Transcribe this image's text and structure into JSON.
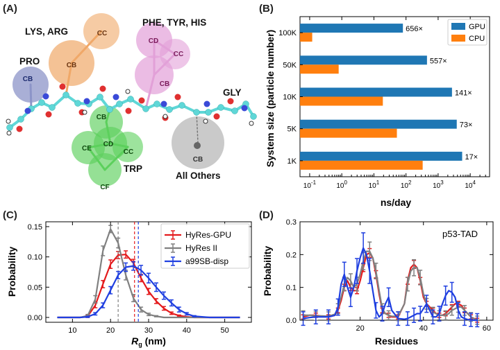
{
  "panels": {
    "a": {
      "label": "(A)"
    },
    "b": {
      "label": "(B)"
    },
    "c": {
      "label": "(C)"
    },
    "d": {
      "label": "(D)"
    }
  },
  "molecule": {
    "groups": [
      "LYS, ARG",
      "PHE, TYR, HIS",
      "PRO",
      "GLY",
      "TRP",
      "All Others"
    ],
    "beads": {
      "lys_cb": "CB",
      "lys_cc": "CC",
      "phe_cd": "CD",
      "phe_cc": "CC",
      "phe_cb": "CB",
      "pro_cb": "CB",
      "trp_cb": "CB",
      "trp_ce": "CE",
      "trp_cd": "CD",
      "trp_cc": "CC",
      "trp_cf": "CF",
      "other_cb": "CB"
    },
    "colors": {
      "lys": "#f0a868",
      "phe": "#e2a0d8",
      "pro": "#8c94c8",
      "trp": "#5cd05c",
      "other": "#b8b8b8",
      "backbone": "#5fd7d7",
      "oxygen": "#e03030",
      "nitrogen": "#3a4ad8"
    }
  },
  "chart_data": [
    {
      "panel": "B",
      "type": "bar",
      "orientation": "horizontal",
      "xscale": "log",
      "xlabel": "ns/day",
      "ylabel": "System size (particle number)",
      "xlim": [
        0.05,
        40000
      ],
      "x_ticks": [
        {
          "label": "10",
          "sup": "-1",
          "value": 0.1
        },
        {
          "label": "10",
          "sup": "0",
          "value": 1
        },
        {
          "label": "10",
          "sup": "1",
          "value": 10
        },
        {
          "label": "10",
          "sup": "2",
          "value": 100
        },
        {
          "label": "10",
          "sup": "3",
          "value": 1000
        },
        {
          "label": "10",
          "sup": "4",
          "value": 10000
        }
      ],
      "categories": [
        "100K",
        "50K",
        "10K",
        "5K",
        "1K"
      ],
      "series": [
        {
          "name": "GPU",
          "color": "#1f77b4",
          "values": [
            80,
            450,
            2700,
            3800,
            5600
          ]
        },
        {
          "name": "CPU",
          "color": "#ff7f0e",
          "values": [
            0.12,
            0.8,
            19,
            52,
            330
          ]
        }
      ],
      "speedup_labels": [
        "656×",
        "557×",
        "141×",
        "73×",
        "17×"
      ],
      "legend_position": "top-right"
    },
    {
      "panel": "C",
      "type": "line",
      "xlabel": "R",
      "xlabel_sub": "g",
      "xlabel_unit": " (nm)",
      "ylabel": "Probability",
      "xlim": [
        3,
        57
      ],
      "ylim": [
        -0.008,
        0.158
      ],
      "x_ticks": [
        10,
        20,
        30,
        40,
        50
      ],
      "y_ticks": [
        "0.00",
        "0.05",
        "0.10",
        "0.15"
      ],
      "series": [
        {
          "name": "HyRes-GPU",
          "color": "#e41a1c",
          "x": [
            6,
            8,
            10,
            12,
            14,
            16,
            18,
            20,
            22,
            24,
            26,
            28,
            30,
            32,
            34,
            36,
            38,
            40,
            42,
            44,
            46,
            48,
            50,
            52,
            54
          ],
          "y": [
            0,
            0,
            0,
            0,
            0.002,
            0.02,
            0.055,
            0.088,
            0.103,
            0.104,
            0.09,
            0.065,
            0.043,
            0.027,
            0.015,
            0.007,
            0.003,
            0.001,
            0,
            0,
            0,
            0,
            0,
            0,
            0
          ],
          "err": [
            0,
            0,
            0,
            0,
            0.002,
            0.004,
            0.006,
            0.007,
            0.006,
            0.006,
            0.006,
            0.006,
            0.005,
            0.004,
            0.003,
            0.002,
            0.001,
            0,
            0,
            0,
            0,
            0,
            0,
            0,
            0
          ],
          "mean": 26.3
        },
        {
          "name": "HyRes II",
          "color": "#808080",
          "x": [
            6,
            8,
            10,
            12,
            14,
            16,
            18,
            20,
            22,
            24,
            26,
            28,
            30,
            32,
            34,
            36,
            38,
            40,
            42,
            44,
            46,
            48,
            50,
            52,
            54
          ],
          "y": [
            0,
            0,
            0,
            0,
            0.003,
            0.03,
            0.11,
            0.146,
            0.123,
            0.07,
            0.032,
            0.013,
            0.005,
            0.002,
            0,
            0,
            0,
            0,
            0,
            0,
            0,
            0,
            0,
            0,
            0
          ],
          "err": [
            0,
            0,
            0,
            0,
            0.002,
            0.006,
            0.008,
            0.006,
            0.008,
            0.008,
            0.006,
            0.004,
            0.002,
            0.001,
            0,
            0,
            0,
            0,
            0,
            0,
            0,
            0,
            0,
            0,
            0
          ],
          "mean": 22
        },
        {
          "name": "a99SB-disp",
          "color": "#1f3fe0",
          "x": [
            6,
            8,
            10,
            12,
            14,
            16,
            18,
            20,
            22,
            24,
            26,
            28,
            30,
            32,
            34,
            36,
            38,
            40,
            42,
            44,
            46,
            48,
            50,
            52,
            54
          ],
          "y": [
            0,
            0,
            0,
            0,
            0.001,
            0.006,
            0.02,
            0.045,
            0.07,
            0.083,
            0.085,
            0.078,
            0.065,
            0.05,
            0.036,
            0.024,
            0.013,
            0.006,
            0.002,
            0.001,
            0,
            0,
            0,
            0,
            0
          ],
          "err": [
            0,
            0,
            0,
            0,
            0.001,
            0.002,
            0.004,
            0.006,
            0.006,
            0.007,
            0.007,
            0.008,
            0.008,
            0.007,
            0.006,
            0.005,
            0.004,
            0.002,
            0.001,
            0,
            0,
            0,
            0,
            0,
            0
          ],
          "mean": 27.3
        }
      ],
      "legend_position": "top-right"
    },
    {
      "panel": "D",
      "type": "line",
      "title": "p53-TAD",
      "xlabel": "Residues",
      "ylabel": "Probability",
      "xlim": [
        1,
        62
      ],
      "ylim": [
        0,
        0.3
      ],
      "x_ticks": [
        20,
        40,
        60
      ],
      "y_ticks": [
        "0.0",
        "0.1",
        "0.2",
        "0.3"
      ],
      "series": [
        {
          "name": "HyRes-GPU",
          "color": "#e41a1c",
          "x": [
            2,
            4,
            6,
            8,
            10,
            12,
            13,
            14,
            15,
            16,
            17,
            18,
            19,
            20,
            21,
            22,
            23,
            24,
            25,
            26,
            27,
            28,
            29,
            30,
            32,
            34,
            35,
            36,
            37,
            38,
            39,
            40,
            41,
            42,
            43,
            44,
            45,
            46,
            47,
            48,
            49,
            50,
            51,
            52,
            53,
            54,
            55,
            56,
            57
          ],
          "y": [
            0.01,
            0.015,
            0.015,
            0.012,
            0.01,
            0.015,
            0.03,
            0.06,
            0.1,
            0.12,
            0.1,
            0.09,
            0.09,
            0.12,
            0.16,
            0.2,
            0.205,
            0.19,
            0.14,
            0.08,
            0.03,
            0.02,
            0.015,
            0.01,
            0.01,
            0.05,
            0.12,
            0.16,
            0.17,
            0.16,
            0.12,
            0.07,
            0.05,
            0.04,
            0.03,
            0.02,
            0.015,
            0.015,
            0.02,
            0.03,
            0.04,
            0.05,
            0.05,
            0.045,
            0.03,
            0.02,
            0.01,
            0.005,
            0
          ],
          "err_every": 2,
          "err": 0.012
        },
        {
          "name": "HyRes II",
          "color": "#808080",
          "x": [
            2,
            4,
            6,
            8,
            10,
            12,
            13,
            14,
            15,
            16,
            17,
            18,
            19,
            20,
            21,
            22,
            23,
            24,
            25,
            26,
            27,
            28,
            29,
            30,
            32,
            34,
            35,
            36,
            37,
            38,
            39,
            40,
            41,
            42,
            43,
            44,
            45,
            46,
            47,
            48,
            49,
            50,
            51,
            52,
            53,
            54,
            55,
            56,
            57
          ],
          "y": [
            0.015,
            0.015,
            0.013,
            0.013,
            0.012,
            0.018,
            0.035,
            0.07,
            0.11,
            0.13,
            0.12,
            0.1,
            0.11,
            0.14,
            0.18,
            0.21,
            0.21,
            0.19,
            0.15,
            0.09,
            0.035,
            0.02,
            0.015,
            0.012,
            0.012,
            0.05,
            0.11,
            0.15,
            0.16,
            0.16,
            0.13,
            0.08,
            0.05,
            0.035,
            0.025,
            0.02,
            0.015,
            0.015,
            0.015,
            0.02,
            0.03,
            0.035,
            0.04,
            0.04,
            0.03,
            0.02,
            0.01,
            0.005,
            0
          ],
          "err_every": 2,
          "err": 0.025
        },
        {
          "name": "a99SB-disp",
          "color": "#1f3fe0",
          "x": [
            2,
            4,
            6,
            8,
            10,
            12,
            13,
            14,
            15,
            16,
            17,
            18,
            19,
            20,
            21,
            22,
            23,
            24,
            25,
            26,
            27,
            28,
            29,
            30,
            32,
            34,
            35,
            36,
            37,
            38,
            39,
            40,
            41,
            42,
            43,
            44,
            45,
            46,
            47,
            48,
            49,
            50,
            51,
            52,
            53,
            54,
            55,
            56,
            57
          ],
          "y": [
            0.005,
            0.008,
            0.01,
            0.01,
            0.01,
            0.015,
            0.04,
            0.11,
            0.14,
            0.1,
            0.07,
            0.1,
            0.15,
            0.19,
            0.22,
            0.2,
            0.15,
            0.09,
            0.03,
            0.01,
            0.02,
            0.05,
            0.07,
            0.03,
            0.005,
            0.003,
            0.005,
            0.01,
            0.015,
            0.02,
            0.02,
            0.035,
            0.05,
            0.03,
            0.01,
            0.01,
            0.02,
            0.05,
            0.075,
            0.09,
            0.085,
            0.07,
            0.03,
            0.01,
            0.005,
            0.002,
            0.001,
            0,
            0
          ],
          "err_every": 2,
          "err": 0.04
        }
      ]
    }
  ]
}
